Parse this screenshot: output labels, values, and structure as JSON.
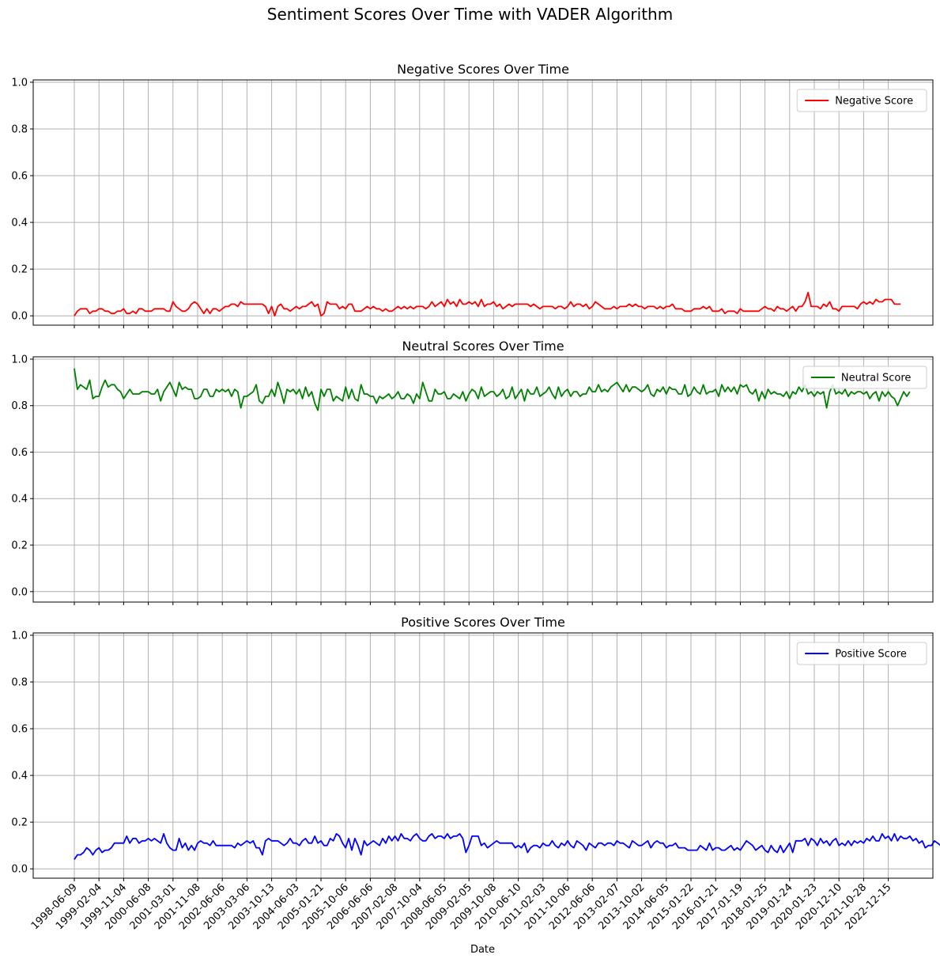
{
  "figure": {
    "suptitle": "Sentiment Scores Over Time with VADER Algorithm",
    "xlabel": "Date",
    "tick_labels": [
      "1998-06-09",
      "1999-02-04",
      "1999-11-04",
      "2000-06-08",
      "2001-03-01",
      "2001-11-08",
      "2002-06-06",
      "2003-03-06",
      "2003-10-13",
      "2004-06-03",
      "2005-01-21",
      "2005-10-06",
      "2006-06-06",
      "2007-02-08",
      "2007-10-04",
      "2008-06-05",
      "2009-02-05",
      "2009-10-08",
      "2010-06-10",
      "2011-02-03",
      "2011-10-06",
      "2012-06-06",
      "2013-02-07",
      "2013-10-02",
      "2014-06-05",
      "2015-01-22",
      "2016-01-21",
      "2017-01-19",
      "2018-01-25",
      "2019-01-24",
      "2020-01-23",
      "2020-12-10",
      "2021-10-28",
      "2022-12-15"
    ]
  },
  "chart_data": [
    {
      "type": "line",
      "title": "Negative Scores Over Time",
      "xlabel": "",
      "ylabel": "",
      "ylim": [
        -0.04,
        1.01
      ],
      "yticks": [
        "0.0",
        "0.2",
        "0.4",
        "0.6",
        "0.8",
        "1.0"
      ],
      "grid": true,
      "legend": "top-right",
      "series": [
        {
          "name": "Negative Score",
          "color": "#ff0000",
          "values": [
            0.0,
            0.02,
            0.03,
            0.03,
            0.03,
            0.01,
            0.02,
            0.02,
            0.03,
            0.03,
            0.02,
            0.02,
            0.01,
            0.01,
            0.02,
            0.02,
            0.03,
            0.01,
            0.01,
            0.02,
            0.01,
            0.03,
            0.03,
            0.02,
            0.02,
            0.02,
            0.03,
            0.03,
            0.03,
            0.03,
            0.02,
            0.02,
            0.06,
            0.04,
            0.03,
            0.02,
            0.02,
            0.03,
            0.05,
            0.06,
            0.05,
            0.03,
            0.01,
            0.03,
            0.01,
            0.03,
            0.03,
            0.02,
            0.03,
            0.04,
            0.04,
            0.05,
            0.05,
            0.04,
            0.06,
            0.05,
            0.05,
            0.05,
            0.05,
            0.05,
            0.05,
            0.05,
            0.04,
            0.01,
            0.04,
            0.0,
            0.04,
            0.05,
            0.03,
            0.03,
            0.02,
            0.03,
            0.04,
            0.03,
            0.04,
            0.04,
            0.05,
            0.06,
            0.04,
            0.05,
            0.0,
            0.01,
            0.06,
            0.05,
            0.05,
            0.05,
            0.03,
            0.04,
            0.03,
            0.05,
            0.05,
            0.02,
            0.02,
            0.02,
            0.03,
            0.04,
            0.03,
            0.04,
            0.03,
            0.03,
            0.02,
            0.03,
            0.02,
            0.02,
            0.03,
            0.04,
            0.03,
            0.04,
            0.03,
            0.04,
            0.03,
            0.04,
            0.04,
            0.04,
            0.03,
            0.04,
            0.06,
            0.04,
            0.05,
            0.06,
            0.04,
            0.07,
            0.05,
            0.06,
            0.04,
            0.07,
            0.05,
            0.05,
            0.06,
            0.05,
            0.06,
            0.04,
            0.07,
            0.04,
            0.05,
            0.05,
            0.06,
            0.04,
            0.05,
            0.03,
            0.04,
            0.05,
            0.04,
            0.05,
            0.05,
            0.05,
            0.05,
            0.05,
            0.04,
            0.05,
            0.04,
            0.03,
            0.04,
            0.04,
            0.04,
            0.04,
            0.03,
            0.04,
            0.04,
            0.03,
            0.04,
            0.06,
            0.04,
            0.05,
            0.05,
            0.04,
            0.05,
            0.03,
            0.04,
            0.06,
            0.05,
            0.04,
            0.03,
            0.03,
            0.03,
            0.04,
            0.03,
            0.04,
            0.04,
            0.04,
            0.05,
            0.04,
            0.05,
            0.04,
            0.04,
            0.03,
            0.04,
            0.04,
            0.04,
            0.03,
            0.04,
            0.03,
            0.04,
            0.04,
            0.05,
            0.03,
            0.03,
            0.03,
            0.02,
            0.02,
            0.02,
            0.03,
            0.03,
            0.03,
            0.04,
            0.03,
            0.04,
            0.02,
            0.02,
            0.02,
            0.03,
            0.01,
            0.02,
            0.02,
            0.02,
            0.01,
            0.03,
            0.02,
            0.02,
            0.02,
            0.02,
            0.02,
            0.02,
            0.03,
            0.04,
            0.03,
            0.03,
            0.02,
            0.04,
            0.03,
            0.03,
            0.02,
            0.03,
            0.04,
            0.02,
            0.04,
            0.04,
            0.06,
            0.1,
            0.04,
            0.04,
            0.04,
            0.03,
            0.05,
            0.04,
            0.06,
            0.03,
            0.03,
            0.02,
            0.04,
            0.04,
            0.04,
            0.04,
            0.04,
            0.03,
            0.05,
            0.06,
            0.05,
            0.06,
            0.05,
            0.07,
            0.06,
            0.06,
            0.07,
            0.07,
            0.07,
            0.05,
            0.05,
            0.05
          ]
        }
      ]
    },
    {
      "type": "line",
      "title": "Neutral Scores Over Time",
      "xlabel": "",
      "ylabel": "",
      "ylim": [
        -0.045,
        1.01
      ],
      "yticks": [
        "0.0",
        "0.2",
        "0.4",
        "0.6",
        "0.8",
        "1.0"
      ],
      "grid": true,
      "legend": "top-right",
      "series": [
        {
          "name": "Neutral Score",
          "color": "#008000",
          "values": [
            0.96,
            0.87,
            0.89,
            0.88,
            0.87,
            0.91,
            0.83,
            0.84,
            0.84,
            0.88,
            0.91,
            0.88,
            0.89,
            0.89,
            0.87,
            0.86,
            0.83,
            0.85,
            0.87,
            0.85,
            0.85,
            0.85,
            0.86,
            0.86,
            0.86,
            0.85,
            0.85,
            0.87,
            0.82,
            0.86,
            0.88,
            0.9,
            0.87,
            0.84,
            0.9,
            0.87,
            0.88,
            0.87,
            0.87,
            0.83,
            0.83,
            0.84,
            0.87,
            0.87,
            0.84,
            0.84,
            0.87,
            0.86,
            0.87,
            0.86,
            0.87,
            0.84,
            0.87,
            0.86,
            0.79,
            0.84,
            0.84,
            0.85,
            0.86,
            0.89,
            0.82,
            0.81,
            0.84,
            0.84,
            0.87,
            0.84,
            0.9,
            0.86,
            0.81,
            0.87,
            0.86,
            0.87,
            0.85,
            0.87,
            0.83,
            0.88,
            0.84,
            0.86,
            0.81,
            0.78,
            0.87,
            0.84,
            0.87,
            0.87,
            0.82,
            0.84,
            0.83,
            0.82,
            0.88,
            0.83,
            0.87,
            0.83,
            0.82,
            0.89,
            0.85,
            0.85,
            0.84,
            0.84,
            0.81,
            0.84,
            0.83,
            0.84,
            0.85,
            0.83,
            0.84,
            0.86,
            0.83,
            0.83,
            0.85,
            0.84,
            0.81,
            0.85,
            0.83,
            0.9,
            0.86,
            0.82,
            0.82,
            0.87,
            0.85,
            0.85,
            0.86,
            0.83,
            0.83,
            0.85,
            0.84,
            0.83,
            0.86,
            0.82,
            0.85,
            0.87,
            0.86,
            0.83,
            0.88,
            0.84,
            0.85,
            0.86,
            0.86,
            0.84,
            0.85,
            0.87,
            0.83,
            0.84,
            0.88,
            0.83,
            0.85,
            0.87,
            0.82,
            0.87,
            0.85,
            0.85,
            0.88,
            0.84,
            0.85,
            0.86,
            0.88,
            0.85,
            0.83,
            0.88,
            0.84,
            0.86,
            0.87,
            0.84,
            0.86,
            0.86,
            0.84,
            0.85,
            0.85,
            0.88,
            0.86,
            0.86,
            0.89,
            0.86,
            0.87,
            0.86,
            0.88,
            0.89,
            0.9,
            0.88,
            0.86,
            0.89,
            0.86,
            0.88,
            0.88,
            0.87,
            0.86,
            0.87,
            0.89,
            0.85,
            0.84,
            0.87,
            0.86,
            0.88,
            0.85,
            0.88,
            0.87,
            0.87,
            0.85,
            0.85,
            0.89,
            0.84,
            0.85,
            0.88,
            0.86,
            0.85,
            0.89,
            0.85,
            0.86,
            0.86,
            0.87,
            0.84,
            0.89,
            0.86,
            0.88,
            0.86,
            0.88,
            0.85,
            0.89,
            0.88,
            0.89,
            0.86,
            0.85,
            0.87,
            0.82,
            0.86,
            0.83,
            0.87,
            0.85,
            0.86,
            0.85,
            0.85,
            0.84,
            0.86,
            0.83,
            0.86,
            0.85,
            0.88,
            0.86,
            0.89,
            0.85,
            0.86,
            0.84,
            0.86,
            0.85,
            0.86,
            0.79,
            0.86,
            0.89,
            0.85,
            0.86,
            0.85,
            0.87,
            0.84,
            0.86,
            0.85,
            0.86,
            0.86,
            0.85,
            0.86,
            0.83,
            0.85,
            0.86,
            0.82,
            0.86,
            0.84,
            0.86,
            0.84,
            0.83,
            0.8,
            0.83,
            0.86,
            0.84,
            0.86
          ]
        }
      ]
    },
    {
      "type": "line",
      "title": "Positive Scores Over Time",
      "xlabel": "Date",
      "ylabel": "",
      "ylim": [
        -0.04,
        1.01
      ],
      "yticks": [
        "0.0",
        "0.2",
        "0.4",
        "0.6",
        "0.8",
        "1.0"
      ],
      "grid": true,
      "legend": "top-right",
      "series": [
        {
          "name": "Positive Score",
          "color": "#0000ff",
          "values": [
            0.04,
            0.06,
            0.06,
            0.07,
            0.09,
            0.08,
            0.06,
            0.08,
            0.09,
            0.07,
            0.08,
            0.08,
            0.09,
            0.11,
            0.11,
            0.11,
            0.11,
            0.14,
            0.11,
            0.13,
            0.13,
            0.11,
            0.12,
            0.12,
            0.13,
            0.12,
            0.13,
            0.12,
            0.11,
            0.15,
            0.11,
            0.09,
            0.08,
            0.08,
            0.13,
            0.09,
            0.11,
            0.08,
            0.1,
            0.08,
            0.11,
            0.12,
            0.11,
            0.11,
            0.1,
            0.12,
            0.1,
            0.1,
            0.1,
            0.1,
            0.1,
            0.1,
            0.09,
            0.11,
            0.1,
            0.11,
            0.12,
            0.11,
            0.12,
            0.09,
            0.09,
            0.06,
            0.12,
            0.13,
            0.12,
            0.12,
            0.12,
            0.11,
            0.1,
            0.11,
            0.13,
            0.11,
            0.11,
            0.1,
            0.12,
            0.13,
            0.11,
            0.11,
            0.14,
            0.11,
            0.12,
            0.1,
            0.1,
            0.13,
            0.12,
            0.15,
            0.14,
            0.11,
            0.09,
            0.13,
            0.08,
            0.13,
            0.1,
            0.06,
            0.12,
            0.1,
            0.11,
            0.12,
            0.11,
            0.1,
            0.13,
            0.11,
            0.14,
            0.12,
            0.14,
            0.12,
            0.15,
            0.13,
            0.13,
            0.12,
            0.14,
            0.15,
            0.13,
            0.12,
            0.12,
            0.14,
            0.15,
            0.13,
            0.14,
            0.14,
            0.13,
            0.15,
            0.13,
            0.14,
            0.14,
            0.15,
            0.13,
            0.07,
            0.1,
            0.14,
            0.14,
            0.14,
            0.1,
            0.11,
            0.09,
            0.1,
            0.11,
            0.12,
            0.11,
            0.11,
            0.11,
            0.11,
            0.11,
            0.09,
            0.1,
            0.09,
            0.11,
            0.07,
            0.09,
            0.1,
            0.1,
            0.09,
            0.11,
            0.1,
            0.1,
            0.12,
            0.1,
            0.09,
            0.11,
            0.1,
            0.12,
            0.1,
            0.09,
            0.12,
            0.11,
            0.1,
            0.08,
            0.11,
            0.1,
            0.09,
            0.11,
            0.11,
            0.1,
            0.11,
            0.11,
            0.1,
            0.12,
            0.11,
            0.11,
            0.1,
            0.09,
            0.12,
            0.11,
            0.1,
            0.1,
            0.11,
            0.12,
            0.09,
            0.11,
            0.12,
            0.11,
            0.11,
            0.09,
            0.1,
            0.1,
            0.11,
            0.09,
            0.09,
            0.09,
            0.08,
            0.08,
            0.08,
            0.08,
            0.1,
            0.09,
            0.08,
            0.11,
            0.08,
            0.09,
            0.09,
            0.08,
            0.08,
            0.09,
            0.1,
            0.08,
            0.09,
            0.08,
            0.1,
            0.12,
            0.11,
            0.1,
            0.08,
            0.09,
            0.1,
            0.08,
            0.07,
            0.1,
            0.08,
            0.07,
            0.1,
            0.07,
            0.09,
            0.11,
            0.07,
            0.12,
            0.12,
            0.12,
            0.13,
            0.1,
            0.13,
            0.12,
            0.1,
            0.13,
            0.11,
            0.12,
            0.1,
            0.12,
            0.13,
            0.1,
            0.11,
            0.1,
            0.12,
            0.1,
            0.12,
            0.11,
            0.12,
            0.11,
            0.13,
            0.12,
            0.14,
            0.12,
            0.12,
            0.15,
            0.13,
            0.14,
            0.12,
            0.15,
            0.12,
            0.14,
            0.13,
            0.13,
            0.14,
            0.12,
            0.13,
            0.11,
            0.12,
            0.09,
            0.1,
            0.1,
            0.12,
            0.11,
            0.1,
            0.12,
            0.13,
            0.1,
            0.1,
            0.1,
            0.1
          ]
        }
      ]
    }
  ]
}
